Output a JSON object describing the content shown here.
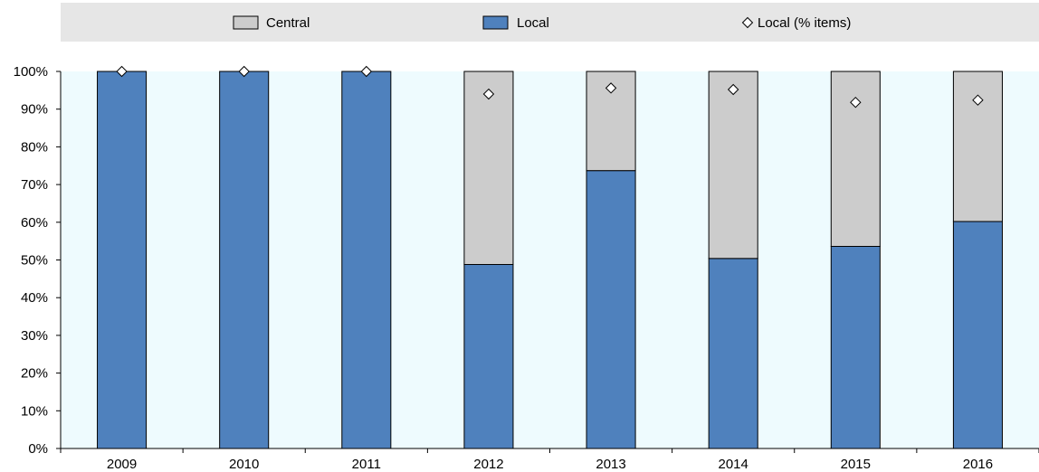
{
  "colors": {
    "central": "#cccccc",
    "local": "#4f81bd",
    "plot_background": "#eefbfe",
    "legend_background": "#e6e6e6",
    "marker_fill": "#ffffff",
    "stroke": "#000000"
  },
  "legend": {
    "central_label": "Central",
    "local_label": "Local",
    "local_pct_items_label": "Local (% items)",
    "placement": "top"
  },
  "chart_data": {
    "type": "bar",
    "stacked": true,
    "categories": [
      "2009",
      "2010",
      "2011",
      "2012",
      "2013",
      "2014",
      "2015",
      "2016"
    ],
    "series": [
      {
        "name": "Local",
        "kind": "bar",
        "values": [
          100,
          100,
          100,
          48.8,
          73.7,
          50.4,
          53.6,
          60.2
        ]
      },
      {
        "name": "Central",
        "kind": "bar",
        "values": [
          0,
          0,
          0,
          51.2,
          26.3,
          49.6,
          46.4,
          39.8
        ]
      },
      {
        "name": "Local (% items)",
        "kind": "marker",
        "values": [
          100,
          100,
          100,
          94,
          95.6,
          95.2,
          91.8,
          92.4
        ]
      }
    ],
    "y_tick_labels": [
      "0%",
      "10%",
      "20%",
      "30%",
      "40%",
      "50%",
      "60%",
      "70%",
      "80%",
      "90%",
      "100%"
    ],
    "ylim": [
      0,
      100
    ],
    "title": "",
    "xlabel": "",
    "ylabel": "",
    "grid": false
  }
}
